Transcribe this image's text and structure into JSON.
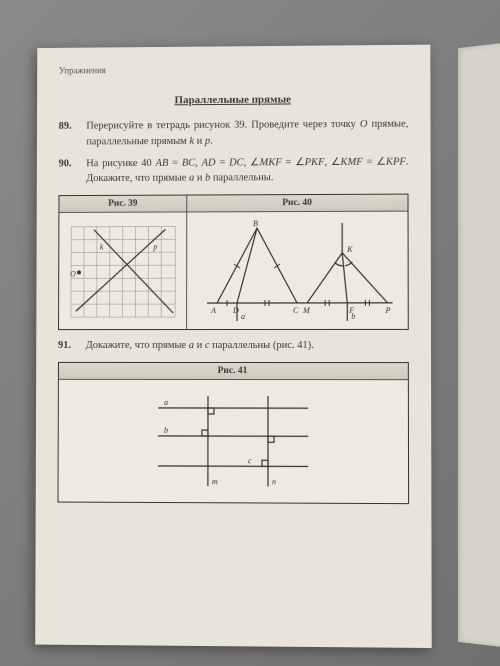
{
  "header": {
    "label": "Упражнения"
  },
  "section": {
    "title": "Параллельные прямые"
  },
  "problems": [
    {
      "num": "89.",
      "text": "Перерисуйте в тетрадь рисунок 39. Проведите через точку <i>O</i> прямые, параллельные прямым <i>k</i> и <i>p</i>."
    },
    {
      "num": "90.",
      "text": "На рисунке 40 <i>AB</i> = <i>BC</i>, <i>AD</i> = <i>DC</i>, ∠<i>MKF</i> = ∠<i>PKF</i>, ∠<i>KMF</i> = ∠<i>KPF</i>. Докажите, что прямые <i>a</i> и <i>b</i> параллельны."
    },
    {
      "num": "91.",
      "text": "Докажите, что прямые <i>a</i> и <i>c</i> параллельны (рис. 41)."
    }
  ],
  "figures": {
    "fig39": {
      "title": "Рис. 39",
      "labels": {
        "O": "O",
        "k": "k",
        "p": "p"
      }
    },
    "fig40": {
      "title": "Рис. 40",
      "labels": {
        "A": "A",
        "B": "B",
        "C": "C",
        "D": "D",
        "K": "K",
        "M": "M",
        "F": "F",
        "P": "P",
        "a": "a",
        "b": "b"
      }
    },
    "fig41": {
      "title": "Рис. 41",
      "labels": {
        "a": "a",
        "b": "b",
        "c": "c",
        "m": "m",
        "n": "n"
      }
    }
  }
}
